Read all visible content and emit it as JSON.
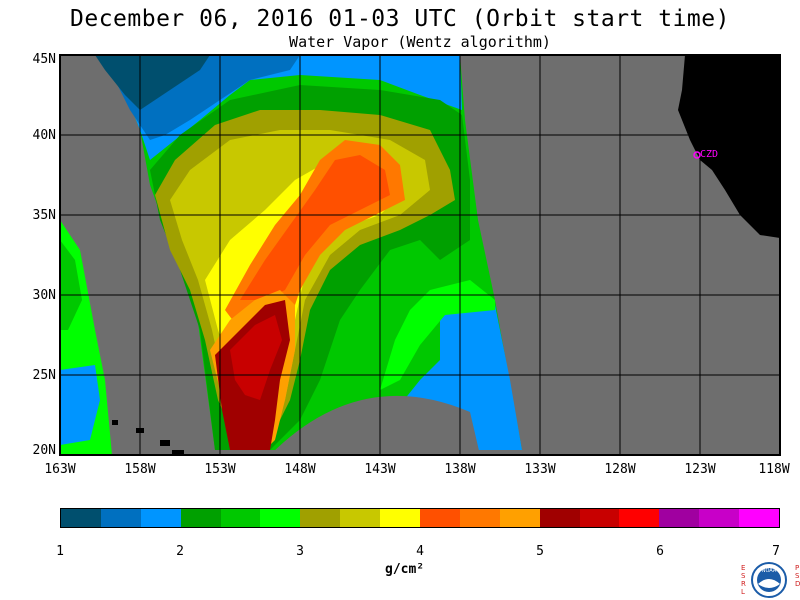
{
  "header": {
    "title": "December 06, 2016  01-03 UTC  (Orbit start time)",
    "subtitle": "Water Vapor (Wentz algorithm)"
  },
  "map": {
    "lat_labels": [
      "45N",
      "40N",
      "35N",
      "30N",
      "25N",
      "20N"
    ],
    "lon_labels": [
      "163W",
      "158W",
      "153W",
      "148W",
      "143W",
      "138W",
      "133W",
      "128W",
      "123W",
      "118W"
    ],
    "station_label": "CZD",
    "colors": {
      "nodata": "#6e6e6e",
      "land": "#000000",
      "grid": "#000000",
      "station": "#ff00ff"
    }
  },
  "colorbar": {
    "tick_labels": [
      "1",
      "2",
      "3",
      "4",
      "5",
      "6",
      "7"
    ],
    "units": "g/cm²",
    "colors": [
      "#004f6e",
      "#0070c0",
      "#0095ff",
      "#00a000",
      "#00c800",
      "#00ff00",
      "#a0a000",
      "#c8c800",
      "#ffff00",
      "#ff5000",
      "#ff7800",
      "#ffa000",
      "#a00000",
      "#c80000",
      "#ff0000",
      "#a000a0",
      "#c800c8",
      "#ff00ff"
    ]
  },
  "logo": {
    "left_letters": "ESRL",
    "right_letters": "PSD",
    "emblem": "NOAA"
  }
}
